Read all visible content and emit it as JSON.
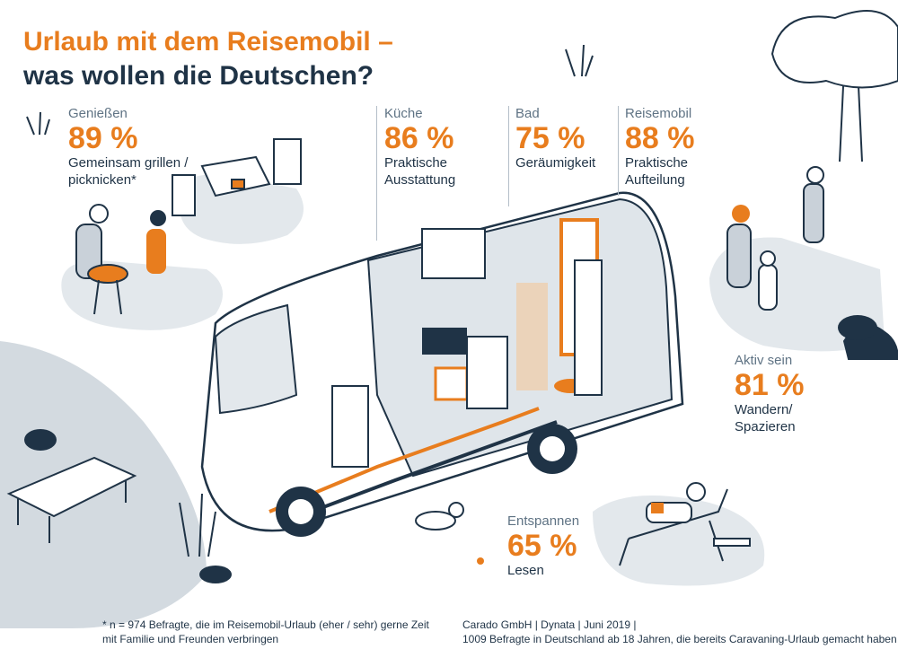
{
  "title": {
    "line1": "Urlaub mit dem Reisemobil –",
    "line2": "was wollen die Deutschen?"
  },
  "stats": {
    "geniessen": {
      "label": "Genießen",
      "percent": "89 %",
      "description": "Gemeinsam grillen /\npicknicken*"
    },
    "kueche": {
      "label": "Küche",
      "percent": "86 %",
      "description": "Praktische\nAusstattung"
    },
    "bad": {
      "label": "Bad",
      "percent": "75 %",
      "description": "Geräumigkeit"
    },
    "reisemobil": {
      "label": "Reisemobil",
      "percent": "88 %",
      "description": "Praktische\nAufteilung"
    },
    "aktiv": {
      "label": "Aktiv sein",
      "percent": "81 %",
      "description": "Wandern/\nSpazieren"
    },
    "entspannen": {
      "label": "Entspannen",
      "percent": "65 %",
      "description": "Lesen"
    }
  },
  "footnote": "* n = 974 Befragte, die im Reisemobil-Urlaub (eher / sehr) gerne Zeit\nmit Familie und Freunden verbringen",
  "source": "Carado GmbH | Dynata | Juni 2019 |\n1009 Befragte in Deutschland ab 18 Jahren, die bereits Caravaning-Urlaub gemacht haben",
  "colors": {
    "accent": "#e87d1e",
    "navy": "#1f3346",
    "grey": "#c9d1d9",
    "line": "#5f7384"
  }
}
